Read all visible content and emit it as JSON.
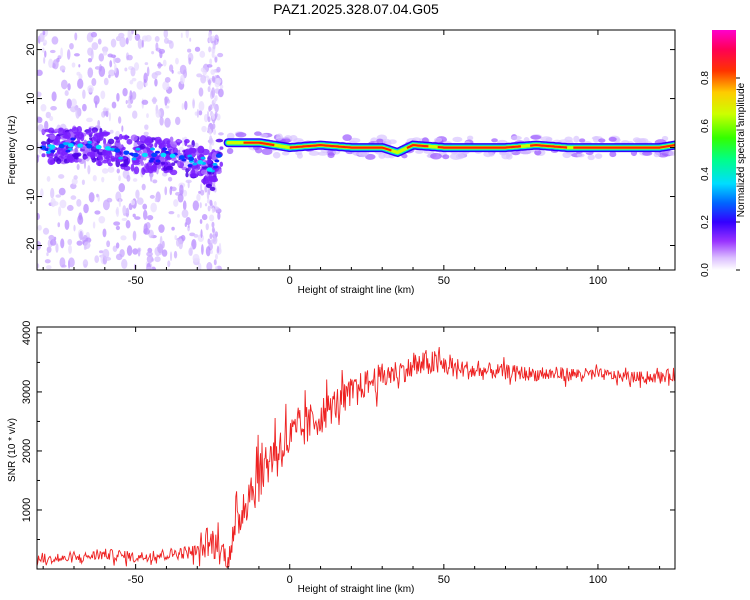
{
  "title": "PAZ1.2025.328.07.04.G05",
  "chart_data": [
    {
      "type": "heatmap",
      "panel": "spectrogram",
      "xlabel": "Height of straight line (km)",
      "ylabel": "Frequency (Hz)",
      "xlim": [
        -82,
        125
      ],
      "ylim": [
        -25,
        24
      ],
      "xticks": [
        -50,
        0,
        50,
        100
      ],
      "yticks": [
        -20,
        -10,
        0,
        10,
        20
      ],
      "colorbar": {
        "label": "Normalized spectral amplitude",
        "range": [
          0.0,
          1.0
        ],
        "ticks": [
          0.0,
          0.2,
          0.4,
          0.6,
          0.8
        ],
        "tick_labels": [
          "0.0",
          "0.2",
          "0.4",
          "0.6",
          "0.8"
        ],
        "colormap": [
          "#ffffff",
          "#cc99ff",
          "#6600ff",
          "#0000ff",
          "#00ccff",
          "#00ff99",
          "#33ff00",
          "#ccff00",
          "#ffcc00",
          "#ff3300",
          "#ff0066",
          "#ff00cc"
        ]
      },
      "ridge": {
        "description": "dominant frequency track",
        "x": [
          -80,
          -70,
          -60,
          -50,
          -40,
          -30,
          -25,
          -22,
          -20,
          -10,
          0,
          10,
          20,
          30,
          35,
          40,
          50,
          60,
          70,
          80,
          90,
          100,
          110,
          120,
          125
        ],
        "y": [
          0,
          0.5,
          0,
          -1.5,
          -1.5,
          -2.5,
          -5,
          0,
          1,
          1,
          0,
          0.5,
          0,
          0,
          -1,
          0.5,
          0,
          0,
          0,
          0.5,
          0,
          0,
          0,
          0,
          0.5
        ]
      },
      "scatter_region": {
        "x": [
          -82,
          -22
        ],
        "y": [
          -25,
          24
        ]
      },
      "dense_line_region": {
        "x": [
          -20,
          125
        ],
        "y": [
          -1,
          1
        ]
      }
    },
    {
      "type": "line",
      "panel": "snr",
      "xlabel": "Height of straight line (km)",
      "ylabel": "SNR (10 * v/v)",
      "xlim": [
        -82,
        125
      ],
      "ylim": [
        0,
        4100
      ],
      "xticks": [
        -50,
        0,
        50,
        100
      ],
      "yticks": [
        1000,
        2000,
        3000,
        4000
      ],
      "color": "#ee2222",
      "series": [
        {
          "name": "SNR",
          "x": [
            -82,
            -70,
            -60,
            -50,
            -40,
            -30,
            -25,
            -20,
            -15,
            -10,
            -5,
            0,
            5,
            10,
            15,
            20,
            25,
            30,
            35,
            40,
            45,
            50,
            55,
            60,
            70,
            80,
            90,
            100,
            110,
            120,
            125
          ],
          "values": [
            150,
            180,
            250,
            200,
            250,
            300,
            450,
            200,
            1100,
            1600,
            2000,
            2200,
            2400,
            2600,
            2800,
            3000,
            3150,
            3250,
            3350,
            3400,
            3500,
            3450,
            3400,
            3350,
            3350,
            3300,
            3300,
            3300,
            3250,
            3250,
            3300
          ],
          "noise_amplitude": [
            80,
            90,
            120,
            110,
            120,
            150,
            350,
            300,
            500,
            600,
            500,
            500,
            450,
            400,
            350,
            300,
            300,
            300,
            250,
            250,
            300,
            250,
            200,
            200,
            150,
            150,
            150,
            120,
            120,
            120,
            150
          ]
        }
      ]
    }
  ]
}
